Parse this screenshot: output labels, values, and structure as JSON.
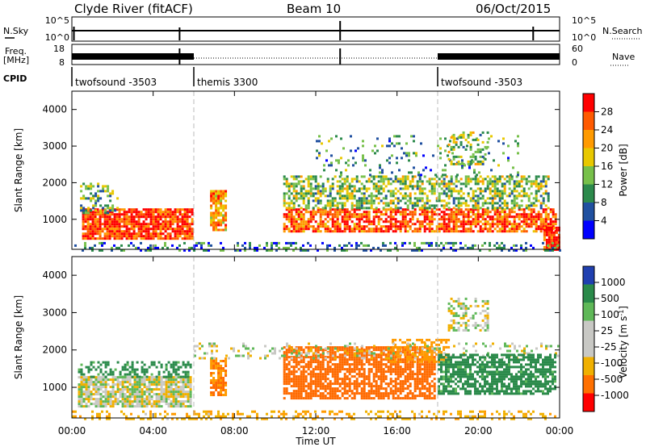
{
  "header": {
    "title_left": "Clyde River (fitACF)",
    "title_center": "Beam 10",
    "title_right": "06/Oct/2015"
  },
  "top_panels": {
    "nsky_label": "N.Sky",
    "nsky_ticks": [
      "10^5",
      "10^0"
    ],
    "nsearch_label": "N.Search",
    "nsearch_ticks": [
      "10^5",
      "10^0"
    ],
    "freq_label_line1": "Freq.",
    "freq_label_line2": "[MHz]",
    "freq_ticks": [
      "18",
      "8"
    ],
    "nave_label": "Nave",
    "nave_ticks": [
      "60",
      "0"
    ],
    "cpid_label": "CPID",
    "cpid_segments": [
      {
        "label": "twofsound -3503",
        "start_hour": 0,
        "end_hour": 6
      },
      {
        "label": "themis 3300",
        "start_hour": 6,
        "end_hour": 18
      },
      {
        "label": "twofsound -3503",
        "start_hour": 18,
        "end_hour": 24
      }
    ]
  },
  "chart_data": [
    {
      "type": "heatmap",
      "name": "power",
      "ylabel": "Slant Range [km]",
      "yticks": [
        1000,
        2000,
        3000,
        4000
      ],
      "ylim": [
        180,
        4500
      ],
      "xlim": [
        0,
        24
      ],
      "colorbar_label": "Power [dB]",
      "colorbar_ticks": [
        "28",
        "24",
        "20",
        "16",
        "12",
        "8",
        "4"
      ],
      "colorbar_colors": [
        "#ff0000",
        "#ff5a00",
        "#ff9a00",
        "#e8c800",
        "#77c04a",
        "#2c8a4c",
        "#2050a0",
        "#0000ff"
      ],
      "regions": [
        {
          "x": [
            0.5,
            5.9
          ],
          "y": [
            500,
            1300
          ],
          "value": 26,
          "density": 0.85
        },
        {
          "x": [
            0.4,
            2.2
          ],
          "y": [
            1200,
            2000
          ],
          "value": 10,
          "density": 0.35
        },
        {
          "x": [
            6.8,
            7.6
          ],
          "y": [
            700,
            1800
          ],
          "value": 20,
          "density": 0.8
        },
        {
          "x": [
            10.4,
            23.8
          ],
          "y": [
            700,
            1300
          ],
          "value": 24,
          "density": 0.75
        },
        {
          "x": [
            10.4,
            23.4
          ],
          "y": [
            1300,
            2200
          ],
          "value": 12,
          "density": 0.55
        },
        {
          "x": [
            12.0,
            22.0
          ],
          "y": [
            2200,
            3300
          ],
          "value": 8,
          "density": 0.12
        },
        {
          "x": [
            18.5,
            20.5
          ],
          "y": [
            2500,
            3400
          ],
          "value": 12,
          "density": 0.35
        },
        {
          "x": [
            23.2,
            24.0
          ],
          "y": [
            200,
            800
          ],
          "value": 27,
          "density": 0.8
        },
        {
          "x": [
            0.0,
            24.0
          ],
          "y": [
            180,
            380
          ],
          "value": 6,
          "density": 0.3
        }
      ]
    },
    {
      "type": "heatmap",
      "name": "velocity",
      "ylabel": "Slant Range [km]",
      "xlabel": "Time UT",
      "xticks": [
        "00:00",
        "04:00",
        "08:00",
        "12:00",
        "16:00",
        "20:00",
        "00:00"
      ],
      "yticks": [
        1000,
        2000,
        3000,
        4000
      ],
      "ylim": [
        180,
        4500
      ],
      "xlim": [
        0,
        24
      ],
      "colorbar_label": "Velocity [m s^-1]",
      "colorbar_ticks": [
        "1000",
        "500",
        "100",
        "25",
        "-25",
        "-100",
        "-500",
        "-1000"
      ],
      "colorbar_colors": [
        "#2040b0",
        "#2a8a4a",
        "#5fb858",
        "#c8c8c4",
        "#c8c8c4",
        "#f0b000",
        "#ff7000",
        "#ff0000"
      ],
      "regions": [
        {
          "x": [
            0.3,
            5.9
          ],
          "y": [
            500,
            1300
          ],
          "value": 0,
          "density": 0.85
        },
        {
          "x": [
            0.3,
            5.9
          ],
          "y": [
            1300,
            1700
          ],
          "value": 150,
          "density": 0.45
        },
        {
          "x": [
            6.8,
            7.6
          ],
          "y": [
            800,
            1800
          ],
          "value": -300,
          "density": 0.8
        },
        {
          "x": [
            10.4,
            17.8
          ],
          "y": [
            700,
            2100
          ],
          "value": -400,
          "density": 0.75
        },
        {
          "x": [
            15.5,
            18.5
          ],
          "y": [
            1700,
            2300
          ],
          "value": -200,
          "density": 0.5
        },
        {
          "x": [
            6.0,
            24.0
          ],
          "y": [
            1800,
            2200
          ],
          "value": 0,
          "density": 0.2
        },
        {
          "x": [
            18.0,
            23.8
          ],
          "y": [
            800,
            1900
          ],
          "value": 150,
          "density": 0.7
        },
        {
          "x": [
            18.5,
            20.5
          ],
          "y": [
            2500,
            3400
          ],
          "value": 0,
          "density": 0.35
        },
        {
          "x": [
            0.0,
            24.0
          ],
          "y": [
            180,
            380
          ],
          "value": -80,
          "density": 0.3
        }
      ]
    }
  ]
}
